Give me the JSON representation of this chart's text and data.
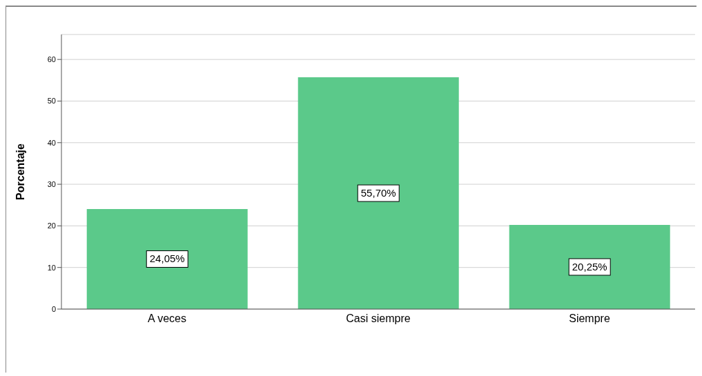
{
  "chart_data": {
    "type": "bar",
    "ylabel": "Porcentaje",
    "categories": [
      "A veces",
      "Casi siempre",
      "Siempre"
    ],
    "values": [
      24.05,
      55.7,
      20.25
    ],
    "value_labels": [
      "24,05%",
      "55,70%",
      "20,25%"
    ],
    "color": "#5bc98a",
    "ylim": [
      0,
      66
    ],
    "yticks": [
      0,
      10,
      20,
      30,
      40,
      50,
      60
    ],
    "grid": "y"
  }
}
